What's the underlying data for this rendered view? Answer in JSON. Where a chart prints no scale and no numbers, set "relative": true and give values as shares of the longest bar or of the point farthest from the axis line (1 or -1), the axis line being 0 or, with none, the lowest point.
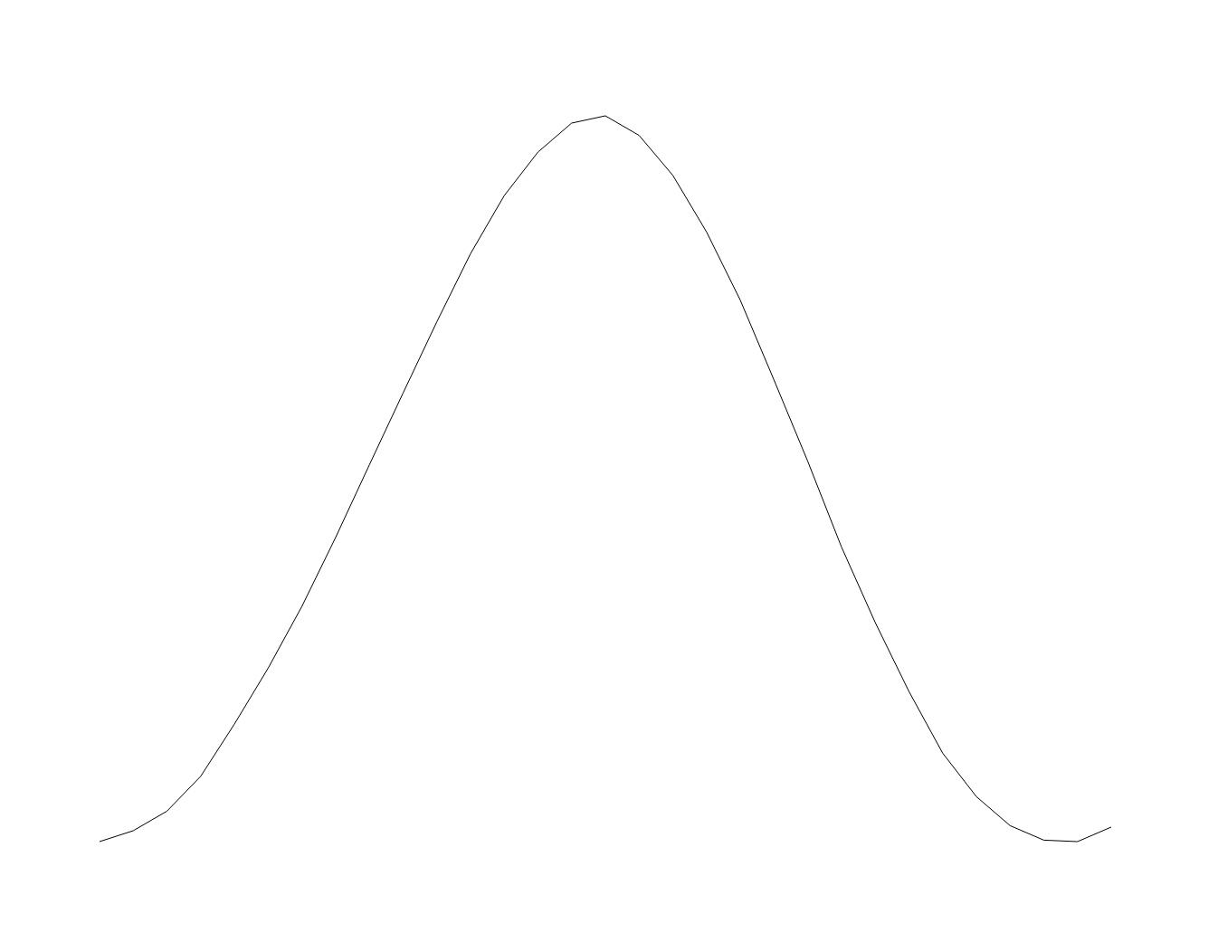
{
  "chart_data": {
    "type": "line",
    "relative": true,
    "color": "#000000",
    "categories": [
      null,
      null,
      null,
      null,
      null,
      null,
      null,
      null,
      null,
      null,
      null,
      null,
      null,
      null,
      null,
      null,
      null,
      null,
      null,
      null,
      null,
      null,
      null,
      null,
      null,
      null,
      null,
      null,
      null,
      null,
      null
    ],
    "values": [
      0,
      0.015,
      0.042,
      0.09,
      0.162,
      0.239,
      0.324,
      0.419,
      0.519,
      0.618,
      0.716,
      0.81,
      0.89,
      0.95,
      0.99,
      1,
      0.973,
      0.918,
      0.84,
      0.746,
      0.636,
      0.524,
      0.406,
      0.302,
      0.207,
      0.122,
      0.062,
      0.022,
      0.002,
      0,
      0.02
    ]
  }
}
